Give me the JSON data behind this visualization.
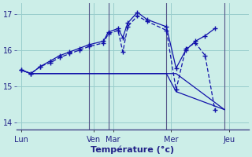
{
  "background_color": "#cceee8",
  "grid_color": "#99cccc",
  "line_color": "#1111aa",
  "xlabel": "Température (°c)",
  "ylim": [
    13.8,
    17.3
  ],
  "yticks": [
    14,
    15,
    16,
    17
  ],
  "xlim": [
    0,
    24
  ],
  "day_labels": [
    "Lun",
    "Ven",
    "Mar",
    "Mer",
    "Jeu"
  ],
  "day_positions": [
    0.5,
    8,
    10,
    16,
    22
  ],
  "vline_positions": [
    7.5,
    9.5,
    15.5,
    21.5
  ],
  "series1_x": [
    0.5,
    1.5,
    2.5,
    3.5,
    4.5,
    5.5,
    6.5,
    7.5,
    9.0,
    9.5,
    10.5,
    11.0,
    11.5,
    12.5,
    13.5,
    15.5,
    16.5,
    17.5,
    18.5,
    19.5,
    20.5
  ],
  "series1_y": [
    15.45,
    15.35,
    15.55,
    15.7,
    15.85,
    15.95,
    16.05,
    16.15,
    16.25,
    16.5,
    16.6,
    16.35,
    16.75,
    17.05,
    16.85,
    16.65,
    15.5,
    16.0,
    16.25,
    16.4,
    16.6
  ],
  "series2_x": [
    0.5,
    1.5,
    2.5,
    3.5,
    4.5,
    5.5,
    6.5,
    7.5,
    9.0,
    9.5,
    10.5,
    11.0,
    11.5,
    12.5,
    13.5,
    15.5,
    16.5,
    17.5,
    18.5,
    19.5,
    20.5
  ],
  "series2_y": [
    15.45,
    15.35,
    15.55,
    15.65,
    15.8,
    15.9,
    16.0,
    16.1,
    16.2,
    16.45,
    16.55,
    15.95,
    16.65,
    16.95,
    16.8,
    16.55,
    14.9,
    16.05,
    16.2,
    15.85,
    14.35
  ],
  "series3_x": [
    0.5,
    1.5,
    15.5,
    16.5,
    21.5
  ],
  "series3_y": [
    15.45,
    15.35,
    15.35,
    15.35,
    14.35
  ],
  "series4_x": [
    0.5,
    1.5,
    15.5,
    16.5,
    21.5
  ],
  "series4_y": [
    15.45,
    15.35,
    15.35,
    14.85,
    14.35
  ]
}
